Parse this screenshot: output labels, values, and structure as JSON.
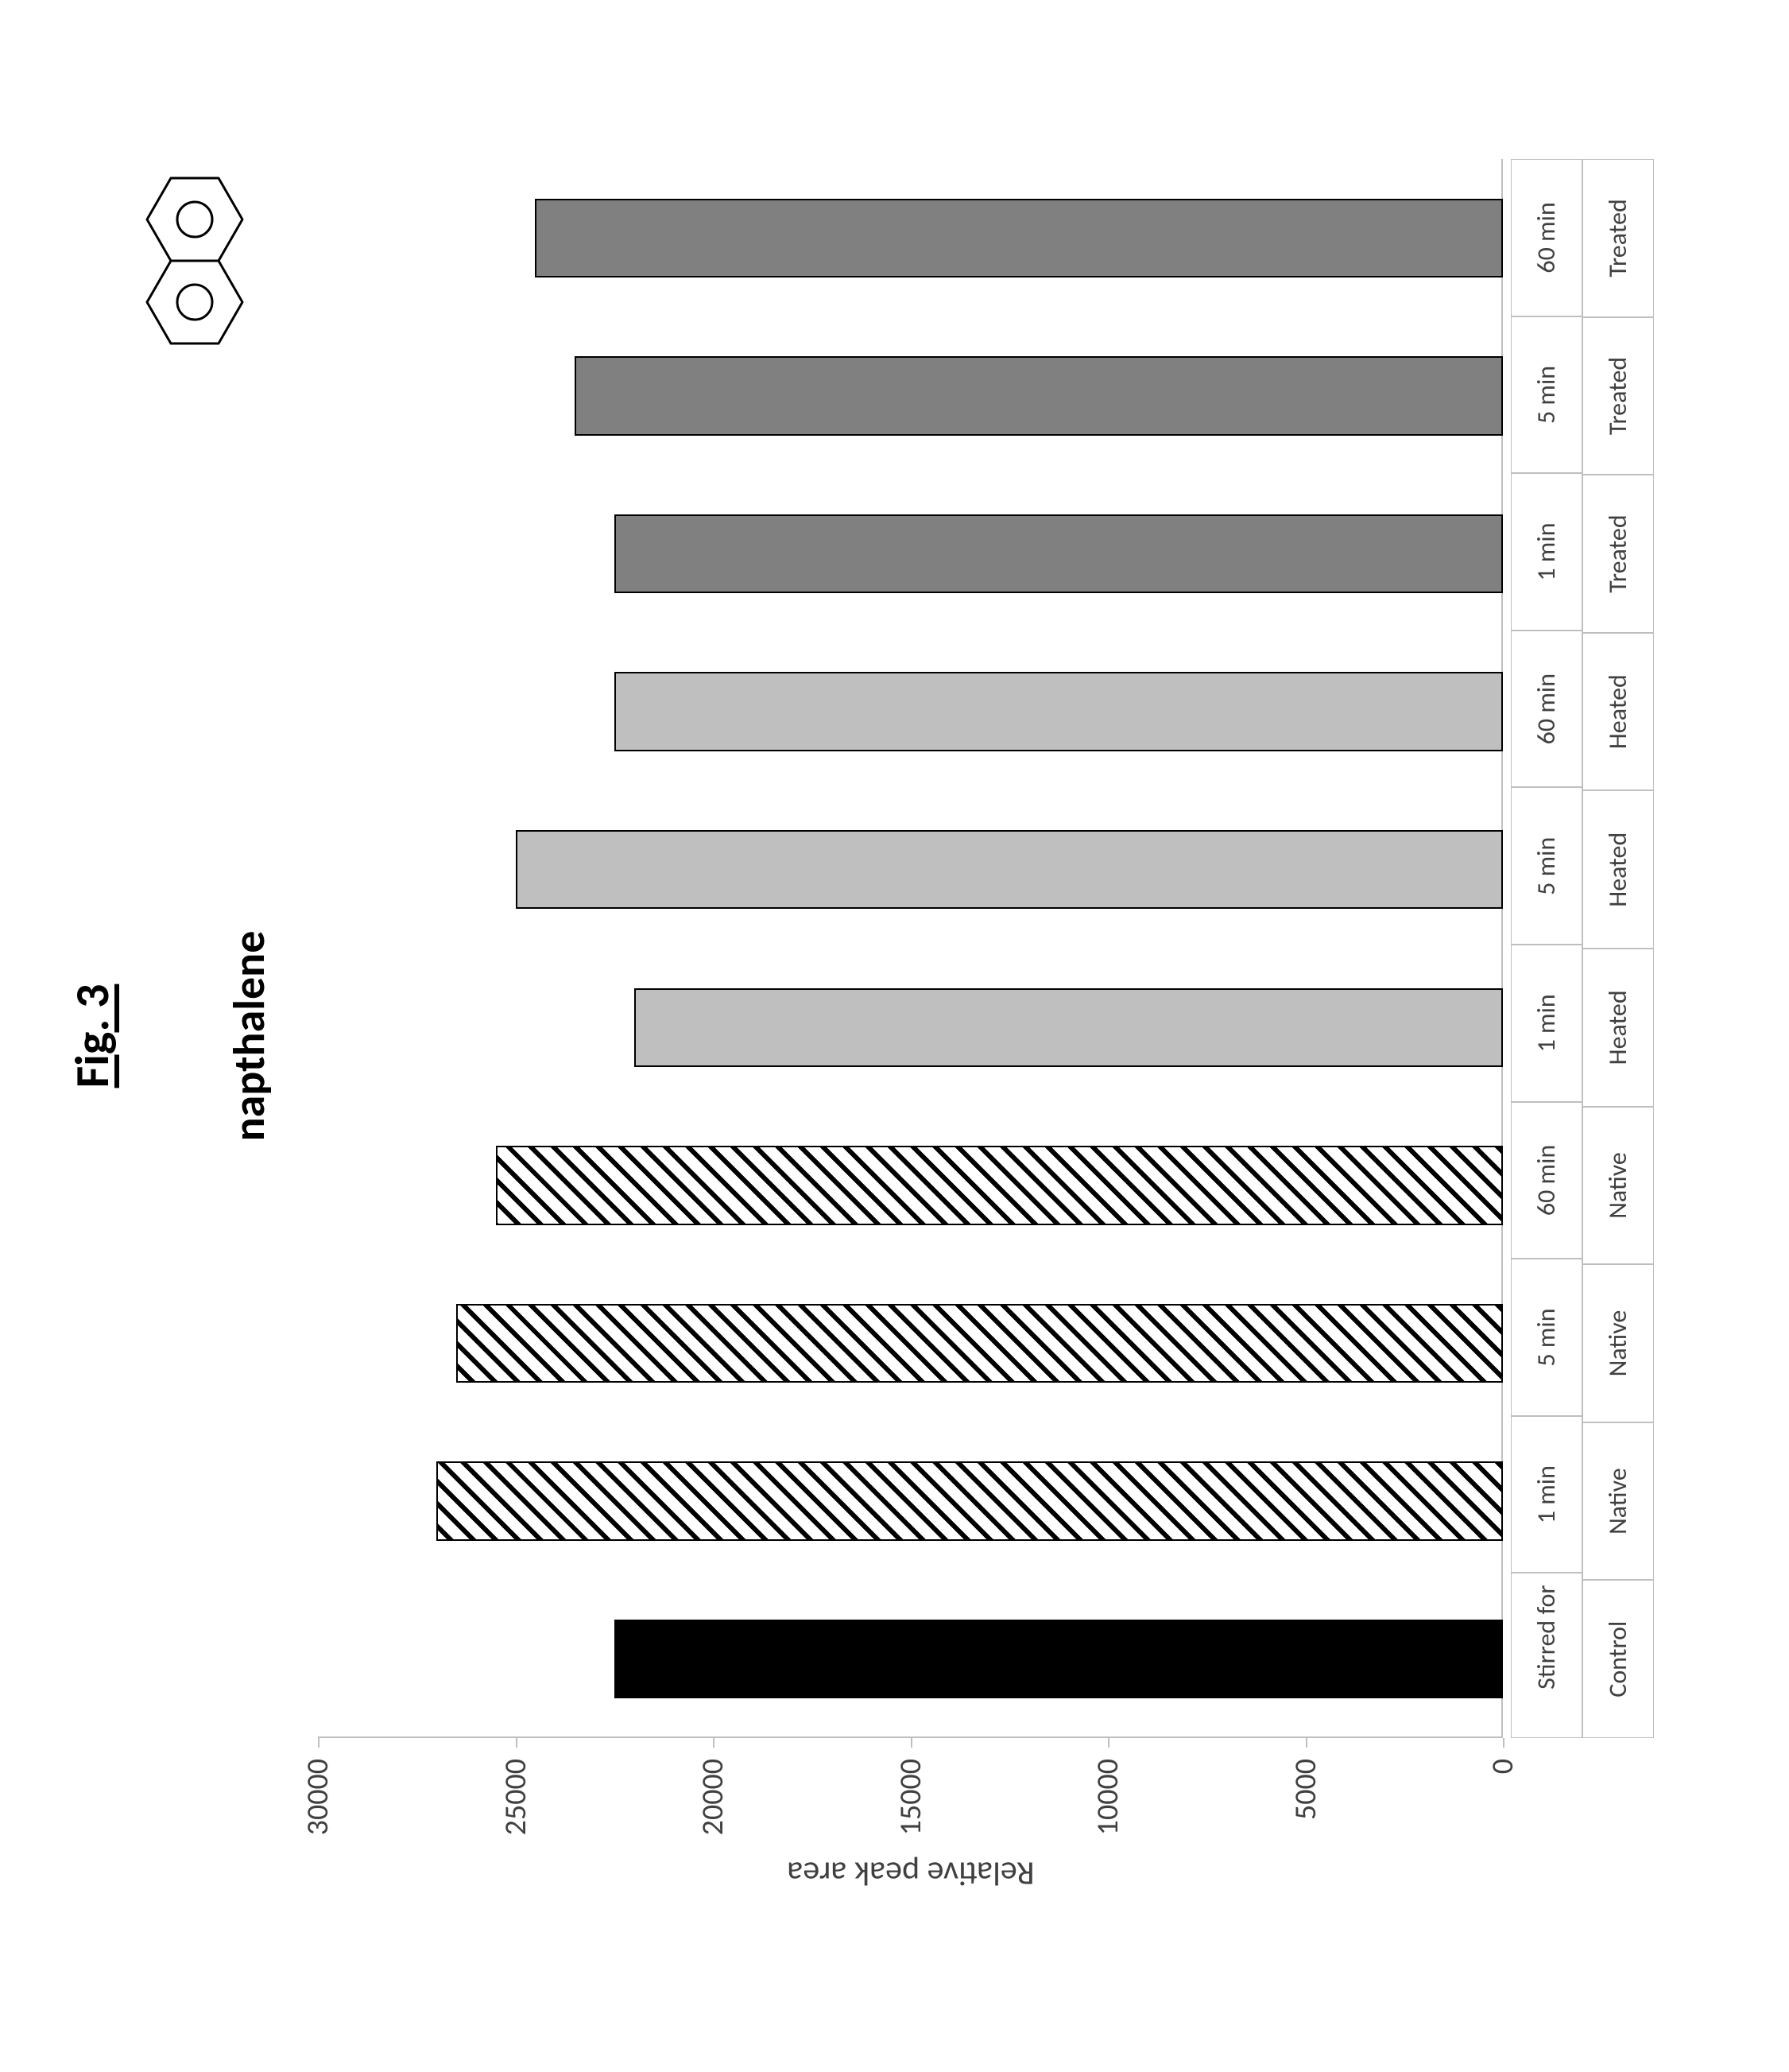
{
  "figure_label": "Fig. 3",
  "chart": {
    "type": "bar",
    "title": "napthalene",
    "title_fontsize": 56,
    "title_fontweight": "bold",
    "ylabel": "Relative peak area",
    "label_fontsize": 42,
    "ylim": [
      0,
      30000
    ],
    "ytick_step": 5000,
    "yticks": [
      0,
      5000,
      10000,
      15000,
      20000,
      25000,
      30000
    ],
    "bar_width": 0.5,
    "background_color": "#ffffff",
    "axis_line_color": "#bfbfbf",
    "tick_label_fontsize": 38,
    "axis_table_fontsize": 32,
    "tick_label_color": "#404040",
    "categories_top_row_heading": "Stirred for",
    "categories_bottom_row_heading": "Control",
    "categories": [
      {
        "top": "Stirred for",
        "bottom": "Control",
        "value": 22500,
        "fill": "solid-black"
      },
      {
        "top": "1 min",
        "bottom": "Native",
        "value": 27000,
        "fill": "hatch"
      },
      {
        "top": "5 min",
        "bottom": "Native",
        "value": 26500,
        "fill": "hatch"
      },
      {
        "top": "60 min",
        "bottom": "Native",
        "value": 25500,
        "fill": "hatch"
      },
      {
        "top": "1 min",
        "bottom": "Heated",
        "value": 22000,
        "fill": "gray-light"
      },
      {
        "top": "5 min",
        "bottom": "Heated",
        "value": 25000,
        "fill": "gray-light"
      },
      {
        "top": "60 min",
        "bottom": "Heated",
        "value": 22500,
        "fill": "gray-light"
      },
      {
        "top": "1 min",
        "bottom": "Treated",
        "value": 22500,
        "fill": "gray-mid"
      },
      {
        "top": "5 min",
        "bottom": "Treated",
        "value": 23500,
        "fill": "gray-mid"
      },
      {
        "top": "60 min",
        "bottom": "Treated",
        "value": 24500,
        "fill": "gray-mid"
      }
    ],
    "fills": {
      "solid-black": {
        "color": "#000000"
      },
      "hatch": {
        "bg": "#ffffff",
        "stripe": "#000000",
        "stripe_width": 6,
        "stripe_gap": 14,
        "angle_deg": -45
      },
      "gray-light": {
        "color": "#bfbfbf"
      },
      "gray-mid": {
        "color": "#808080"
      }
    },
    "bar_border_color": "#000000",
    "bar_border_width": 2
  },
  "molecule": {
    "name": "naphthalene-structure",
    "hexagon_stroke": "#000000",
    "hexagon_stroke_width": 3,
    "circle_stroke": "#000000",
    "circle_stroke_width": 3,
    "ring_radius": 22,
    "hexagon_half_height": 60,
    "hexagon_half_width": 52
  }
}
